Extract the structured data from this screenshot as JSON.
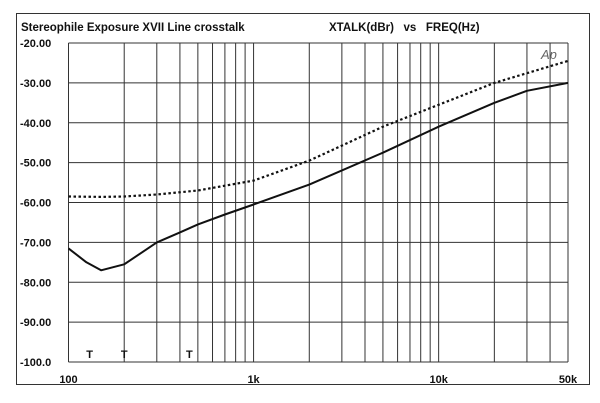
{
  "chart_data": {
    "type": "line",
    "title": "Stereophile  Exposure XVII Line crosstalk",
    "subtitle": "XTALK(dBr)   vs   FREQ(Hz)",
    "xlabel": "FREQ(Hz)",
    "ylabel": "XTALK(dBr)",
    "xscale": "log",
    "xlim": [
      100,
      50000
    ],
    "ylim": [
      -100,
      -20
    ],
    "grid": true,
    "x_tick_labels": [
      {
        "value": 100,
        "label": "100"
      },
      {
        "value": 1000,
        "label": "1k"
      },
      {
        "value": 10000,
        "label": "10k"
      },
      {
        "value": 50000,
        "label": "50k"
      }
    ],
    "y_tick_labels": [
      {
        "value": -20,
        "label": "-20.00"
      },
      {
        "value": -30,
        "label": "-30.00"
      },
      {
        "value": -40,
        "label": "-40.00"
      },
      {
        "value": -50,
        "label": "-50.00"
      },
      {
        "value": -60,
        "label": "-60.00"
      },
      {
        "value": -70,
        "label": "-70.00"
      },
      {
        "value": -80,
        "label": "-80.00"
      },
      {
        "value": -90,
        "label": "-90.00"
      },
      {
        "value": -100,
        "label": "-100.0"
      }
    ],
    "annotations": [
      {
        "text": "T",
        "x": 130,
        "y": -98
      },
      {
        "text": "T",
        "x": 200,
        "y": -98
      },
      {
        "text": "T",
        "x": 450,
        "y": -98
      }
    ],
    "logo": "Ap",
    "series": [
      {
        "name": "solid",
        "style": "solid",
        "x": [
          100,
          125,
          150,
          200,
          250,
          300,
          400,
          500,
          700,
          1000,
          2000,
          5000,
          10000,
          20000,
          30000,
          50000
        ],
        "y": [
          -71.5,
          -75,
          -77,
          -75.5,
          -72.5,
          -70,
          -67.5,
          -65.5,
          -63,
          -60.5,
          -55.5,
          -47.5,
          -41,
          -35,
          -32,
          -30
        ]
      },
      {
        "name": "dotted",
        "style": "dotted",
        "x": [
          100,
          150,
          200,
          300,
          500,
          1000,
          2000,
          5000,
          10000,
          20000,
          50000
        ],
        "y": [
          -58.5,
          -58.6,
          -58.5,
          -58,
          -57,
          -54.5,
          -49.5,
          -41,
          -35.5,
          -30,
          -24.5
        ]
      }
    ]
  }
}
